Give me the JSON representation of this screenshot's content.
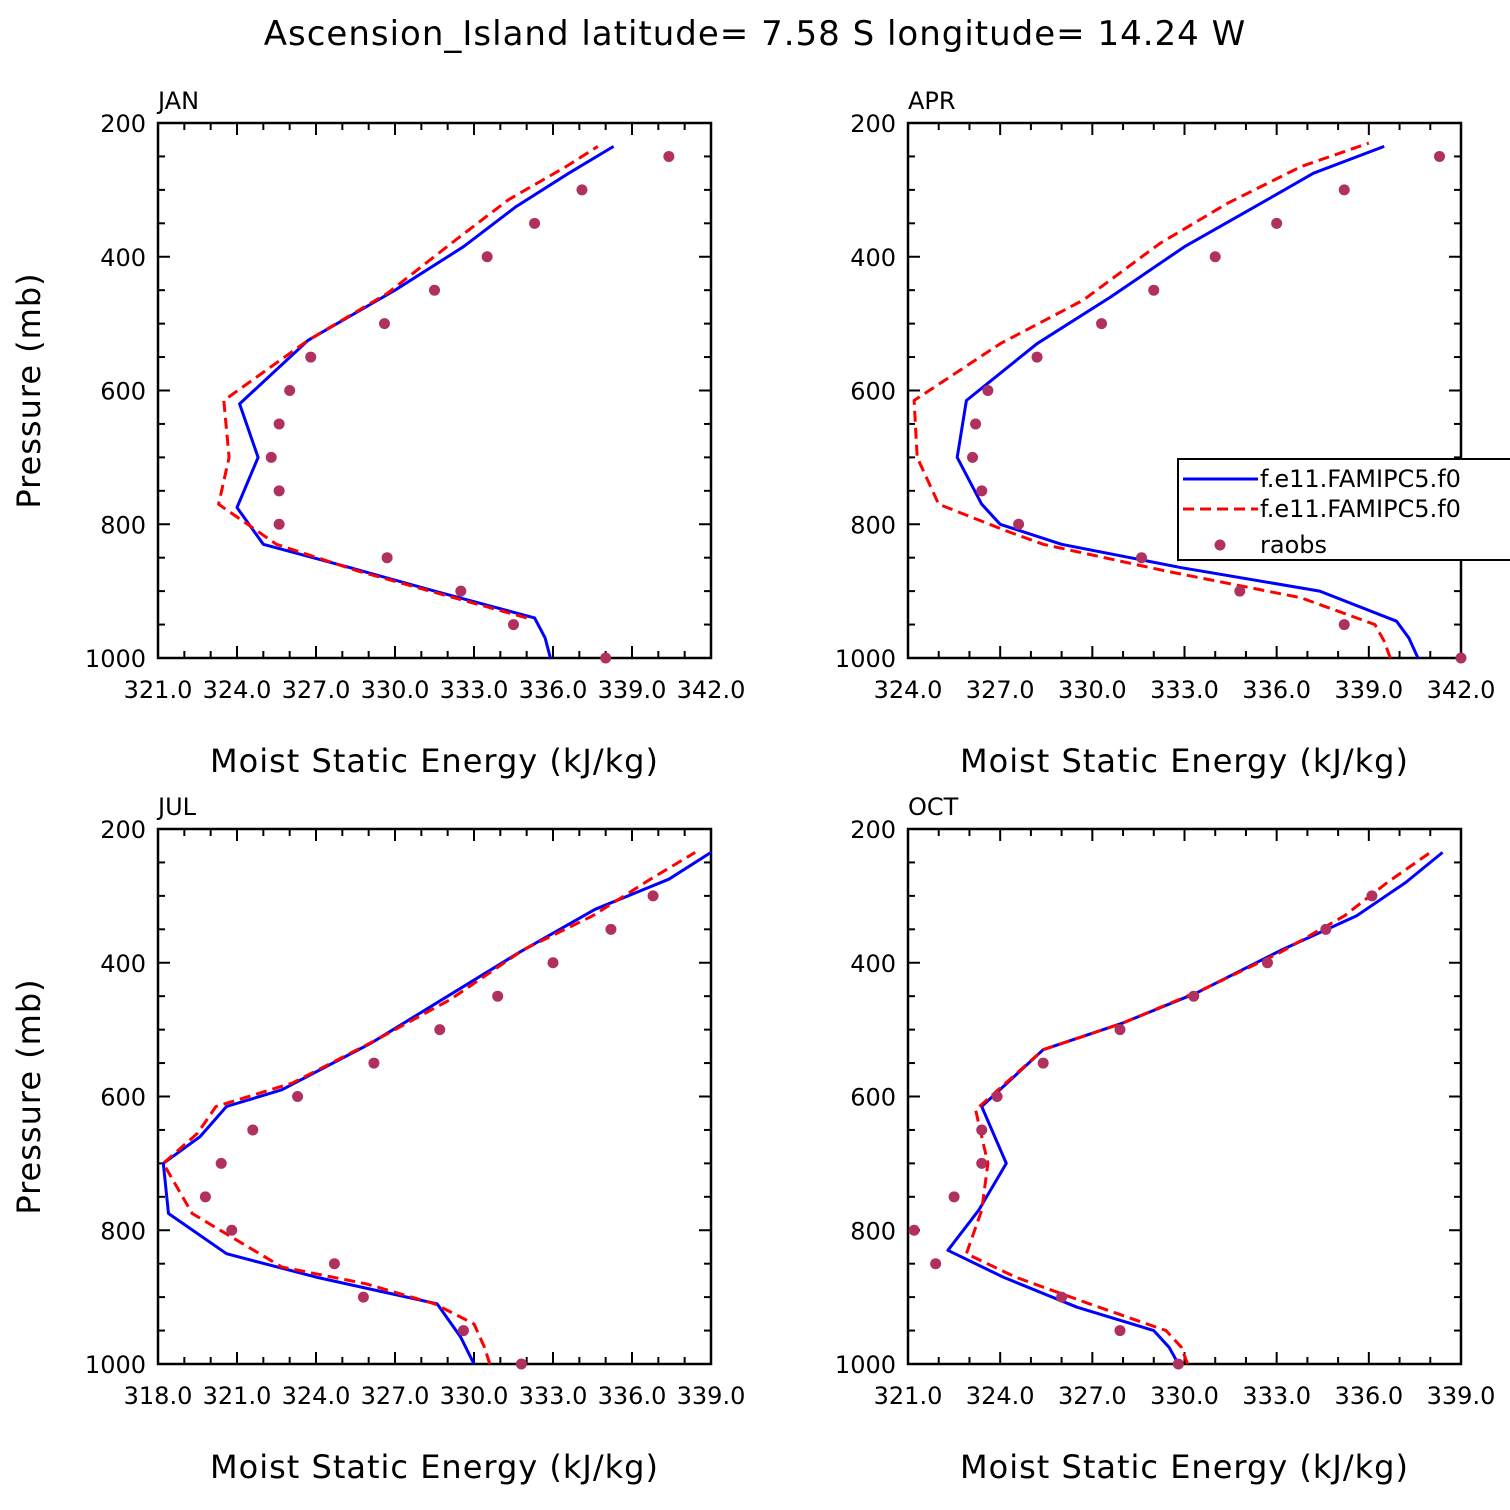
{
  "title": "Ascension_Island  latitude= 7.58 S longitude= 14.24 W",
  "legend": {
    "entries": [
      {
        "label": "f.e11.FAMIPC5.f0",
        "color": "#0000ff",
        "style": "solid"
      },
      {
        "label": "f.e11.FAMIPC5.f0",
        "color": "#ff0000",
        "style": "dashed"
      },
      {
        "label": "raobs",
        "color": "#b03060",
        "style": "marker"
      }
    ]
  },
  "colors": {
    "model_a": "#0000ff",
    "model_b": "#ff0000",
    "obs": "#b03060"
  },
  "chart_data": [
    {
      "type": "line",
      "panel": "JAN",
      "xlabel": "Moist Static Energy (kJ/kg)",
      "ylabel": "Pressure (mb)",
      "xlim": [
        321.0,
        342.0
      ],
      "ylim": [
        1000,
        200
      ],
      "x_ticks": [
        321.0,
        324.0,
        327.0,
        330.0,
        333.0,
        336.0,
        339.0,
        342.0
      ],
      "x_tick_labels": [
        "321.0",
        "324.0",
        "327.0",
        "330.0",
        "333.0",
        "336.0",
        "339.0",
        "342.0"
      ],
      "y_ticks": [
        200,
        400,
        600,
        800,
        1000
      ],
      "y_tick_labels": [
        "200",
        "400",
        "600",
        "800",
        "1000"
      ],
      "series": [
        {
          "key": "model_a",
          "style": "solid",
          "points": [
            [
              335.9,
              1000
            ],
            [
              335.7,
              970
            ],
            [
              335.3,
              940
            ],
            [
              331.5,
              900
            ],
            [
              328.3,
              865
            ],
            [
              325.0,
              830
            ],
            [
              324.0,
              775
            ],
            [
              324.8,
              700
            ],
            [
              324.1,
              620
            ],
            [
              326.7,
              525
            ],
            [
              330.0,
              450
            ],
            [
              332.6,
              385
            ],
            [
              334.6,
              325
            ],
            [
              336.6,
              275
            ],
            [
              338.3,
              235
            ]
          ]
        },
        {
          "key": "model_b",
          "style": "dashed",
          "points": [
            [
              335.0,
              940
            ],
            [
              331.8,
              905
            ],
            [
              328.6,
              870
            ],
            [
              325.5,
              830
            ],
            [
              323.3,
              770
            ],
            [
              323.7,
              700
            ],
            [
              323.5,
              615
            ],
            [
              326.7,
              525
            ],
            [
              329.7,
              455
            ],
            [
              332.3,
              375
            ],
            [
              334.3,
              315
            ],
            [
              336.5,
              265
            ],
            [
              337.7,
              235
            ]
          ]
        },
        {
          "key": "obs",
          "style": "marker",
          "points": [
            [
              340.4,
              250
            ],
            [
              337.1,
              300
            ],
            [
              335.3,
              350
            ],
            [
              333.5,
              400
            ],
            [
              331.5,
              450
            ],
            [
              329.6,
              500
            ],
            [
              326.8,
              550
            ],
            [
              326.0,
              600
            ],
            [
              325.6,
              650
            ],
            [
              325.3,
              700
            ],
            [
              325.6,
              750
            ],
            [
              325.6,
              800
            ],
            [
              329.7,
              850
            ],
            [
              332.5,
              900
            ],
            [
              334.5,
              950
            ],
            [
              338.0,
              1000
            ]
          ]
        }
      ]
    },
    {
      "type": "line",
      "panel": "APR",
      "xlabel": "Moist Static Energy (kJ/kg)",
      "ylabel": "",
      "xlim": [
        324.0,
        342.0
      ],
      "ylim": [
        1000,
        200
      ],
      "x_ticks": [
        324.0,
        327.0,
        330.0,
        333.0,
        336.0,
        339.0,
        342.0
      ],
      "x_tick_labels": [
        "324.0",
        "327.0",
        "330.0",
        "333.0",
        "336.0",
        "339.0",
        "342.0"
      ],
      "y_ticks": [
        200,
        400,
        600,
        800,
        1000
      ],
      "y_tick_labels": [
        "200",
        "400",
        "600",
        "800",
        "1000"
      ],
      "series": [
        {
          "key": "model_a",
          "style": "solid",
          "points": [
            [
              340.6,
              1000
            ],
            [
              340.3,
              970
            ],
            [
              339.9,
              945
            ],
            [
              337.4,
              900
            ],
            [
              332.9,
              865
            ],
            [
              329.0,
              830
            ],
            [
              327.0,
              800
            ],
            [
              326.4,
              770
            ],
            [
              325.6,
              700
            ],
            [
              325.9,
              615
            ],
            [
              328.2,
              530
            ],
            [
              330.6,
              460
            ],
            [
              333.0,
              385
            ],
            [
              335.3,
              325
            ],
            [
              337.2,
              275
            ],
            [
              339.5,
              235
            ]
          ]
        },
        {
          "key": "model_b",
          "style": "dashed",
          "points": [
            [
              339.7,
              1000
            ],
            [
              339.5,
              975
            ],
            [
              339.2,
              950
            ],
            [
              336.8,
              910
            ],
            [
              332.4,
              870
            ],
            [
              328.4,
              830
            ],
            [
              327.2,
              810
            ],
            [
              325.0,
              770
            ],
            [
              324.3,
              700
            ],
            [
              324.2,
              615
            ],
            [
              327.0,
              530
            ],
            [
              329.7,
              465
            ],
            [
              332.2,
              380
            ],
            [
              334.4,
              320
            ],
            [
              336.8,
              265
            ],
            [
              339.0,
              230
            ]
          ]
        },
        {
          "key": "obs",
          "style": "marker",
          "points": [
            [
              341.3,
              250
            ],
            [
              338.2,
              300
            ],
            [
              336.0,
              350
            ],
            [
              334.0,
              400
            ],
            [
              332.0,
              450
            ],
            [
              330.3,
              500
            ],
            [
              328.2,
              550
            ],
            [
              326.6,
              600
            ],
            [
              326.2,
              650
            ],
            [
              326.1,
              700
            ],
            [
              326.4,
              750
            ],
            [
              327.6,
              800
            ],
            [
              331.6,
              850
            ],
            [
              334.8,
              900
            ],
            [
              338.2,
              950
            ],
            [
              342.0,
              1000
            ]
          ]
        }
      ]
    },
    {
      "type": "line",
      "panel": "JUL",
      "xlabel": "Moist Static Energy (kJ/kg)",
      "ylabel": "Pressure (mb)",
      "xlim": [
        318.0,
        339.0
      ],
      "ylim": [
        1000,
        200
      ],
      "x_ticks": [
        318.0,
        321.0,
        324.0,
        327.0,
        330.0,
        333.0,
        336.0,
        339.0
      ],
      "x_tick_labels": [
        "318.0",
        "321.0",
        "324.0",
        "327.0",
        "330.0",
        "333.0",
        "336.0",
        "339.0"
      ],
      "y_ticks": [
        200,
        400,
        600,
        800,
        1000
      ],
      "y_tick_labels": [
        "200",
        "400",
        "600",
        "800",
        "1000"
      ],
      "series": [
        {
          "key": "model_a",
          "style": "solid",
          "points": [
            [
              330.0,
              1000
            ],
            [
              329.5,
              960
            ],
            [
              328.6,
              910
            ],
            [
              324.0,
              870
            ],
            [
              320.6,
              835
            ],
            [
              318.4,
              775
            ],
            [
              318.2,
              700
            ],
            [
              319.6,
              660
            ],
            [
              320.6,
              615
            ],
            [
              322.7,
              590
            ],
            [
              326.1,
              520
            ],
            [
              329.0,
              450
            ],
            [
              331.7,
              385
            ],
            [
              334.6,
              320
            ],
            [
              337.4,
              275
            ],
            [
              339.0,
              235
            ]
          ]
        },
        {
          "key": "model_b",
          "style": "dashed",
          "points": [
            [
              330.6,
              1000
            ],
            [
              330.4,
              975
            ],
            [
              330.0,
              940
            ],
            [
              328.5,
              910
            ],
            [
              325.9,
              880
            ],
            [
              322.7,
              855
            ],
            [
              319.3,
              775
            ],
            [
              318.2,
              700
            ],
            [
              319.5,
              655
            ],
            [
              320.2,
              615
            ],
            [
              323.1,
              580
            ],
            [
              326.3,
              515
            ],
            [
              329.1,
              455
            ],
            [
              331.9,
              380
            ],
            [
              334.5,
              330
            ],
            [
              336.7,
              275
            ],
            [
              338.4,
              235
            ]
          ]
        },
        {
          "key": "obs",
          "style": "marker",
          "points": [
            [
              336.8,
              300
            ],
            [
              335.2,
              350
            ],
            [
              333.0,
              400
            ],
            [
              330.9,
              450
            ],
            [
              328.7,
              500
            ],
            [
              326.2,
              550
            ],
            [
              323.3,
              600
            ],
            [
              321.6,
              650
            ],
            [
              320.4,
              700
            ],
            [
              319.8,
              750
            ],
            [
              320.8,
              800
            ],
            [
              324.7,
              850
            ],
            [
              325.8,
              900
            ],
            [
              329.6,
              950
            ],
            [
              331.8,
              1000
            ]
          ]
        }
      ]
    },
    {
      "type": "line",
      "panel": "OCT",
      "xlabel": "Moist Static Energy (kJ/kg)",
      "ylabel": "",
      "xlim": [
        321.0,
        339.0
      ],
      "ylim": [
        1000,
        200
      ],
      "x_ticks": [
        321.0,
        324.0,
        327.0,
        330.0,
        333.0,
        336.0,
        339.0
      ],
      "x_tick_labels": [
        "321.0",
        "324.0",
        "327.0",
        "330.0",
        "333.0",
        "336.0",
        "339.0"
      ],
      "y_ticks": [
        200,
        400,
        600,
        800,
        1000
      ],
      "y_tick_labels": [
        "200",
        "400",
        "600",
        "800",
        "1000"
      ],
      "series": [
        {
          "key": "model_a",
          "style": "solid",
          "points": [
            [
              329.8,
              1000
            ],
            [
              329.5,
              975
            ],
            [
              329.0,
              950
            ],
            [
              326.5,
              915
            ],
            [
              324.1,
              870
            ],
            [
              322.3,
              830
            ],
            [
              323.3,
              770
            ],
            [
              324.2,
              700
            ],
            [
              323.4,
              615
            ],
            [
              325.4,
              530
            ],
            [
              328.0,
              490
            ],
            [
              330.4,
              445
            ],
            [
              333.2,
              380
            ],
            [
              335.6,
              330
            ],
            [
              337.2,
              280
            ],
            [
              338.4,
              235
            ]
          ]
        },
        {
          "key": "model_b",
          "style": "dashed",
          "points": [
            [
              330.1,
              1000
            ],
            [
              329.9,
              975
            ],
            [
              329.4,
              950
            ],
            [
              326.9,
              910
            ],
            [
              324.5,
              870
            ],
            [
              322.9,
              835
            ],
            [
              323.4,
              770
            ],
            [
              323.6,
              700
            ],
            [
              323.2,
              620
            ],
            [
              325.4,
              530
            ],
            [
              328.0,
              490
            ],
            [
              330.6,
              440
            ],
            [
              333.1,
              385
            ],
            [
              335.2,
              330
            ],
            [
              336.6,
              280
            ],
            [
              338.0,
              235
            ]
          ]
        },
        {
          "key": "obs",
          "style": "marker",
          "points": [
            [
              336.1,
              300
            ],
            [
              334.6,
              350
            ],
            [
              332.7,
              400
            ],
            [
              330.3,
              450
            ],
            [
              327.9,
              500
            ],
            [
              325.4,
              550
            ],
            [
              323.9,
              600
            ],
            [
              323.4,
              650
            ],
            [
              323.4,
              700
            ],
            [
              322.5,
              750
            ],
            [
              321.2,
              800
            ],
            [
              321.9,
              850
            ],
            [
              326.0,
              900
            ],
            [
              327.9,
              950
            ],
            [
              329.8,
              1000
            ]
          ]
        }
      ]
    }
  ]
}
